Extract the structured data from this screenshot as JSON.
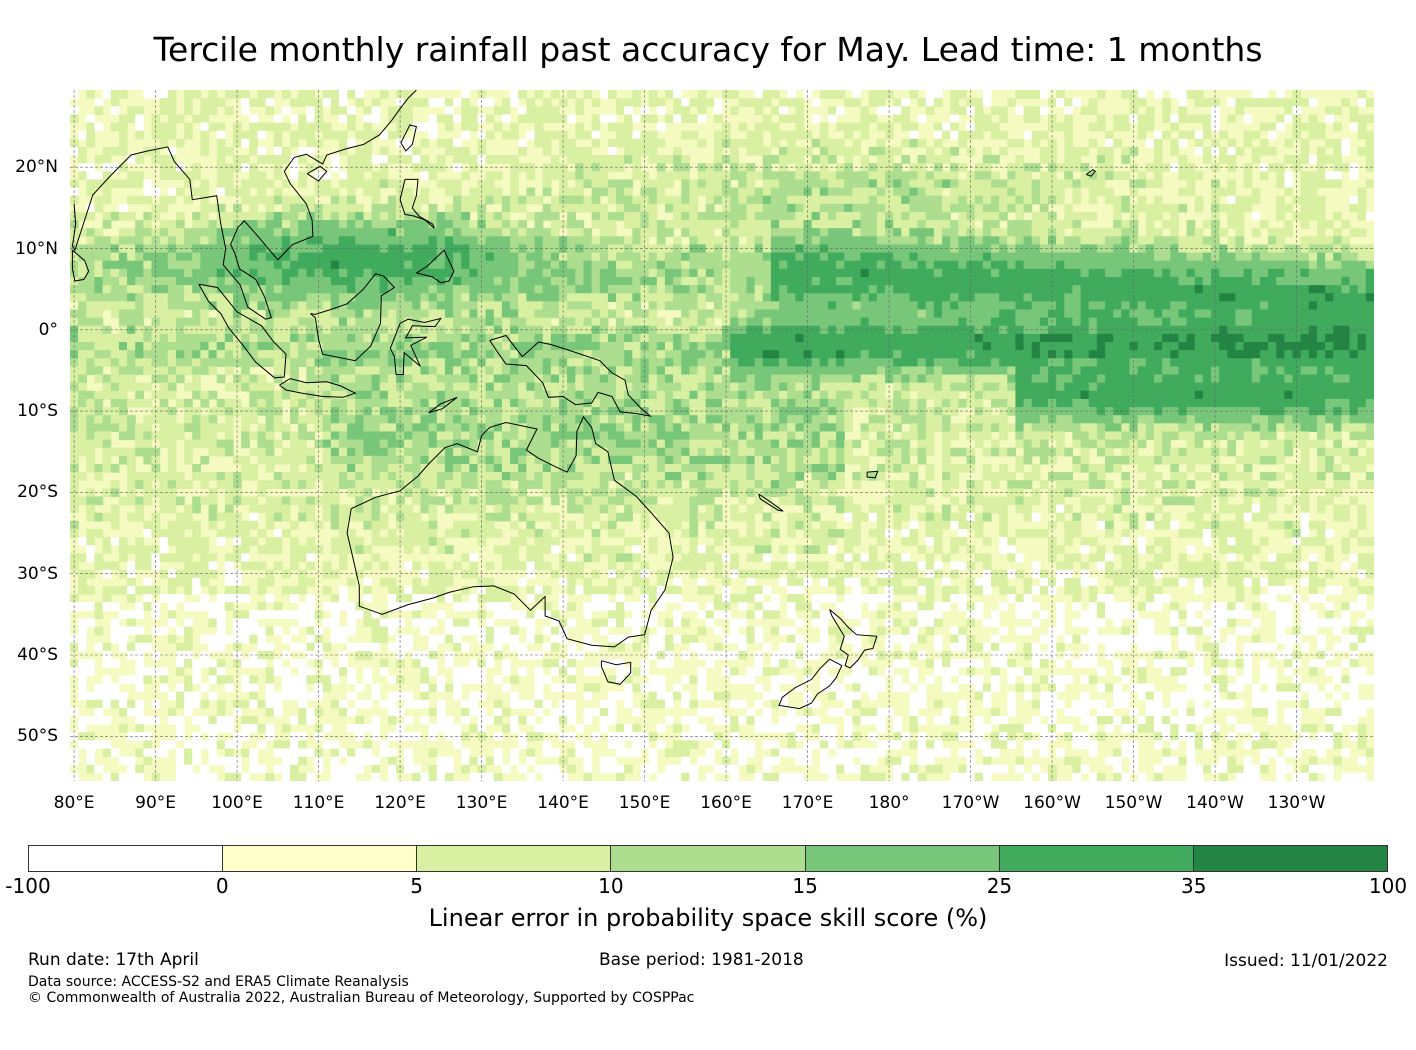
{
  "title": "Tercile monthly rainfall past accuracy for May. Lead time: 1 months",
  "map": {
    "lat_labels": [
      "20°N",
      "10°N",
      "0°",
      "10°S",
      "20°S",
      "30°S",
      "40°S",
      "50°S"
    ],
    "lon_labels": [
      "80°E",
      "90°E",
      "100°E",
      "110°E",
      "120°E",
      "130°E",
      "140°E",
      "150°E",
      "160°E",
      "170°E",
      "180°",
      "170°W",
      "160°W",
      "150°W",
      "140°W",
      "130°W"
    ],
    "lat_values": [
      20,
      10,
      0,
      -10,
      -20,
      -30,
      -40,
      -50
    ],
    "lon_values": [
      80,
      90,
      100,
      110,
      120,
      130,
      140,
      150,
      160,
      170,
      180,
      190,
      200,
      210,
      220,
      230
    ],
    "extent": {
      "lon_min": 79.5,
      "lon_max": 239.5,
      "lat_min": -55.5,
      "lat_max": 29.5
    }
  },
  "colorbar": {
    "label": "Linear error in probability space skill score (%)",
    "ticks": [
      "-100",
      "0",
      "5",
      "10",
      "15",
      "25",
      "35",
      "100"
    ],
    "colors": [
      "#ffffff",
      "#ffffcc",
      "#d9f0a3",
      "#addd8e",
      "#78c679",
      "#41ab5d",
      "#238443"
    ]
  },
  "footer": {
    "run_date": "Run date: 17th April",
    "base_period": "Base period: 1981-2018",
    "issued": "Issued: 11/01/2022",
    "data_source": "Data source: ACCESS-S2 and ERA5 Climate Reanalysis",
    "copyright": "© Commonwealth of Australia 2022, Australian Bureau of Meteorology, Supported by COSPPac"
  }
}
